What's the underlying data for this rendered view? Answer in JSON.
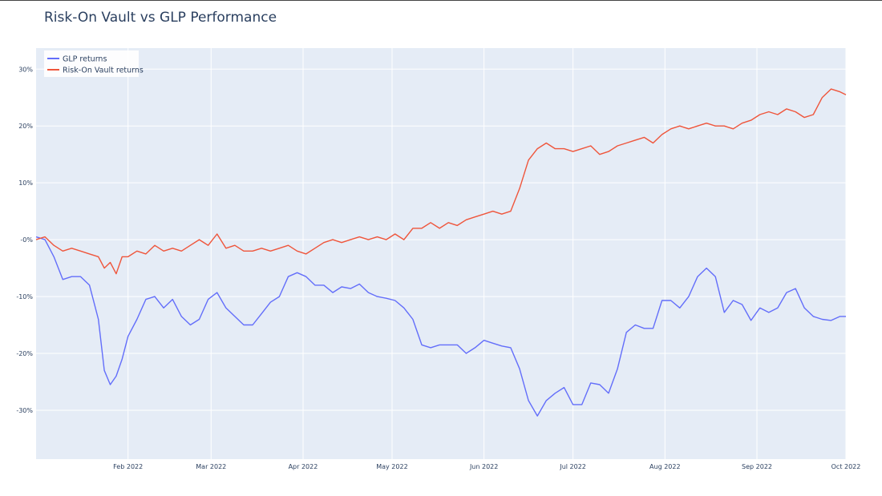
{
  "chart_data": {
    "type": "line",
    "title": "Risk-On Vault vs GLP Performance",
    "xlabel": "",
    "ylabel": "",
    "xlim": [
      "2022-01-01",
      "2022-10-01"
    ],
    "ylim": [
      -38.6,
      33.7
    ],
    "y_unit": "%",
    "grid": true,
    "legend_position": "top-left",
    "background_color": "#e5ecf6",
    "x_ticks": [
      {
        "date": "2022-02-01",
        "label": "Feb 2022"
      },
      {
        "date": "2022-03-01",
        "label": "Mar 2022"
      },
      {
        "date": "2022-04-01",
        "label": "Apr 2022"
      },
      {
        "date": "2022-05-01",
        "label": "May 2022"
      },
      {
        "date": "2022-06-01",
        "label": "Jun 2022"
      },
      {
        "date": "2022-07-01",
        "label": "Jul 2022"
      },
      {
        "date": "2022-08-01",
        "label": "Aug 2022"
      },
      {
        "date": "2022-09-01",
        "label": "Sep 2022"
      },
      {
        "date": "2022-10-01",
        "label": "Oct 2022"
      }
    ],
    "y_ticks": [
      {
        "value": 30,
        "label": "30%"
      },
      {
        "value": 20,
        "label": "20%"
      },
      {
        "value": 10,
        "label": "10%"
      },
      {
        "value": 0,
        "label": "-0%"
      },
      {
        "value": -10,
        "label": "-10%"
      },
      {
        "value": -20,
        "label": "-20%"
      },
      {
        "value": -30,
        "label": "-30%"
      }
    ],
    "x": [
      "2022-01-01",
      "2022-01-04",
      "2022-01-07",
      "2022-01-10",
      "2022-01-13",
      "2022-01-16",
      "2022-01-19",
      "2022-01-22",
      "2022-01-24",
      "2022-01-26",
      "2022-01-28",
      "2022-01-30",
      "2022-02-01",
      "2022-02-04",
      "2022-02-07",
      "2022-02-10",
      "2022-02-13",
      "2022-02-16",
      "2022-02-19",
      "2022-02-22",
      "2022-02-25",
      "2022-02-28",
      "2022-03-03",
      "2022-03-06",
      "2022-03-09",
      "2022-03-12",
      "2022-03-15",
      "2022-03-18",
      "2022-03-21",
      "2022-03-24",
      "2022-03-27",
      "2022-03-30",
      "2022-04-02",
      "2022-04-05",
      "2022-04-08",
      "2022-04-11",
      "2022-04-14",
      "2022-04-17",
      "2022-04-20",
      "2022-04-23",
      "2022-04-26",
      "2022-04-29",
      "2022-05-02",
      "2022-05-05",
      "2022-05-08",
      "2022-05-11",
      "2022-05-14",
      "2022-05-17",
      "2022-05-20",
      "2022-05-23",
      "2022-05-26",
      "2022-05-29",
      "2022-06-01",
      "2022-06-04",
      "2022-06-07",
      "2022-06-10",
      "2022-06-13",
      "2022-06-16",
      "2022-06-19",
      "2022-06-22",
      "2022-06-25",
      "2022-06-28",
      "2022-07-01",
      "2022-07-04",
      "2022-07-07",
      "2022-07-10",
      "2022-07-13",
      "2022-07-16",
      "2022-07-19",
      "2022-07-22",
      "2022-07-25",
      "2022-07-28",
      "2022-07-31",
      "2022-08-03",
      "2022-08-06",
      "2022-08-09",
      "2022-08-12",
      "2022-08-15",
      "2022-08-18",
      "2022-08-21",
      "2022-08-24",
      "2022-08-27",
      "2022-08-30",
      "2022-09-02",
      "2022-09-05",
      "2022-09-08",
      "2022-09-11",
      "2022-09-14",
      "2022-09-17",
      "2022-09-20",
      "2022-09-23",
      "2022-09-26",
      "2022-09-29",
      "2022-10-01"
    ],
    "series": [
      {
        "name": "GLP returns",
        "color": "#636efa",
        "values": [
          0.5,
          0,
          -3,
          -7,
          -6.5,
          -6.5,
          -8,
          -14,
          -23,
          -25.5,
          -24,
          -21,
          -17,
          -14,
          -10.5,
          -10,
          -12,
          -10.5,
          -13.5,
          -15,
          -14,
          -10.5,
          -9.3,
          -12,
          -13.5,
          -15,
          -15,
          -13,
          -11,
          -10,
          -6.5,
          -5.8,
          -6.5,
          -8,
          -8,
          -9.3,
          -8.3,
          -8.6,
          -7.8,
          -9.3,
          -10,
          -10.3,
          -10.7,
          -12,
          -14,
          -18.5,
          -19,
          -18.5,
          -18.5,
          -18.5,
          -20,
          -19,
          -17.7,
          -18.2,
          -18.7,
          -19,
          -22.7,
          -28.3,
          -31,
          -28.3,
          -27,
          -26,
          -29,
          -29,
          -25.2,
          -25.5,
          -27,
          -22.7,
          -16.3,
          -15,
          -15.6,
          -15.6,
          -10.7,
          -10.7,
          -12,
          -10,
          -6.5,
          -5,
          -6.5,
          -12.8,
          -10.7,
          -11.4,
          -14.2,
          -12,
          -12.8,
          -12,
          -9.3,
          -8.6,
          -12,
          -13.5,
          -14,
          -14.2,
          -13.5,
          -13.5
        ]
      },
      {
        "name": "Risk-On Vault returns",
        "color": "#ef553b",
        "values": [
          0,
          0.5,
          -1,
          -2,
          -1.5,
          -2,
          -2.5,
          -3,
          -5,
          -4,
          -6,
          -3,
          -3,
          -2,
          -2.5,
          -1,
          -2,
          -1.5,
          -2,
          -1,
          0,
          -1,
          1,
          -1.5,
          -1,
          -2,
          -2,
          -1.5,
          -2,
          -1.5,
          -1,
          -2,
          -2.5,
          -1.5,
          -0.5,
          0,
          -0.5,
          0,
          0.5,
          0,
          0.5,
          0,
          1,
          0,
          2,
          2,
          3,
          2,
          3,
          2.5,
          3.5,
          4,
          4.5,
          5,
          4.5,
          5,
          9,
          14,
          16,
          17,
          16,
          16,
          15.5,
          16,
          16.5,
          15,
          15.5,
          16.5,
          17,
          17.5,
          18,
          17,
          18.5,
          19.5,
          20,
          19.5,
          20,
          20.5,
          20,
          20,
          19.5,
          20.5,
          21,
          22,
          22.5,
          22,
          23,
          22.5,
          21.5,
          22,
          25,
          26.5,
          26,
          25.5
        ]
      }
    ]
  }
}
